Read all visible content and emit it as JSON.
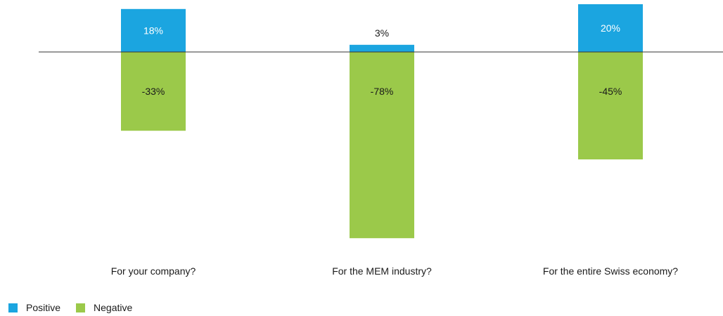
{
  "chart_data": {
    "type": "bar",
    "categories": [
      "For your company?",
      "For the MEM industry?",
      "For the entire Swiss economy?"
    ],
    "series": [
      {
        "name": "Positive",
        "values": [
          18,
          3,
          20
        ],
        "labels": [
          "18%",
          "3%",
          "20%"
        ],
        "color": "#1ba5e0"
      },
      {
        "name": "Negative",
        "values": [
          -33,
          -78,
          -45
        ],
        "labels": [
          "-33%",
          "-78%",
          "-45%"
        ],
        "color": "#9bc94a"
      }
    ],
    "title": "",
    "xlabel": "",
    "ylabel": "",
    "ylim": [
      -78,
      20
    ],
    "grid": false,
    "legend_position": "bottom-left"
  }
}
